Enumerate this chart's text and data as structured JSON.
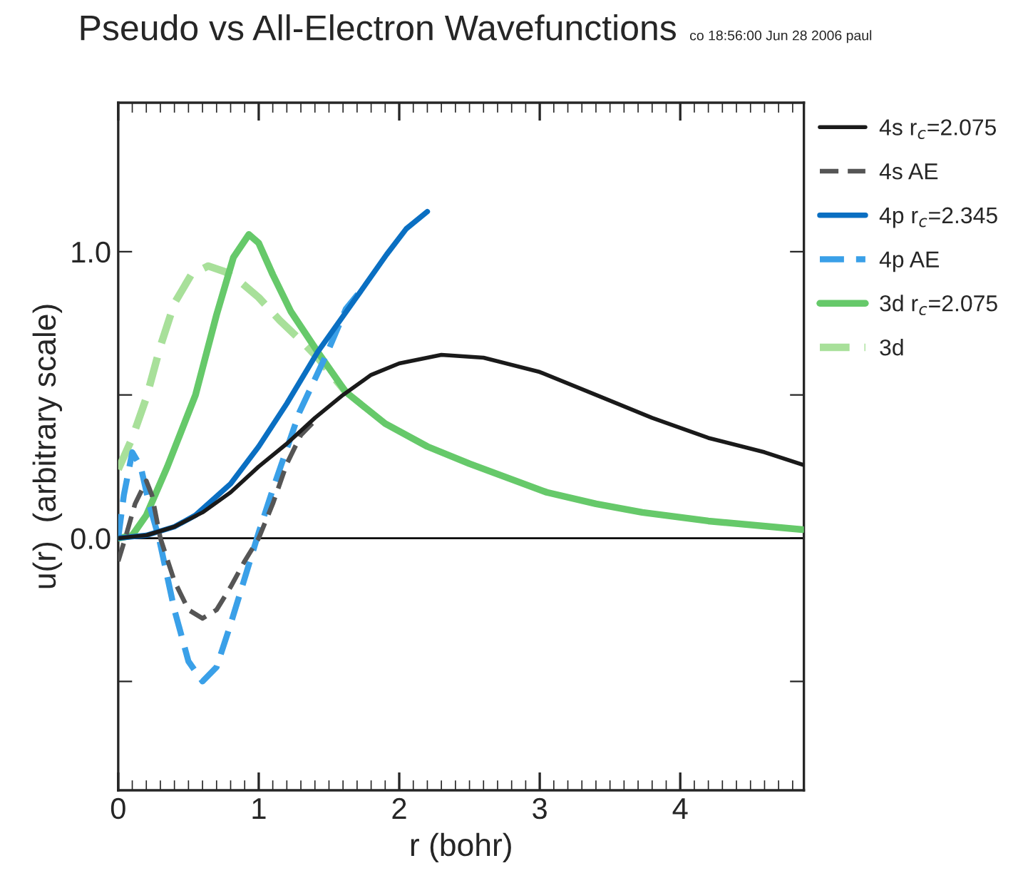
{
  "chart_data": {
    "type": "line",
    "title": "Pseudo vs All-Electron Wavefunctions",
    "subtitle": "co 18:56:00 Jun 28 2006 paul",
    "xlabel": "r (bohr)",
    "ylabel": "u(r)  (arbitrary scale)",
    "xlim": [
      0,
      4.88
    ],
    "xticks": [
      0,
      1,
      2,
      3,
      4
    ],
    "ylim": [
      -0.88,
      1.52
    ],
    "yticks": [
      {
        "value": -0.5,
        "label": null
      },
      {
        "value": 0,
        "label": "0.0"
      },
      {
        "value": 0.5,
        "label": null
      },
      {
        "value": 1,
        "label": "1.0"
      }
    ],
    "grid": false,
    "legend": "right",
    "marker": "none",
    "ref_lines": [
      {
        "axis": "y",
        "value": 0,
        "color": "#000000",
        "line_style": "solid"
      }
    ],
    "series": [
      {
        "name": "4s r$_{c}$=2.075",
        "color": "#1a1a1a",
        "line_style": "solid",
        "x": [
          0,
          0.2,
          0.4,
          0.6,
          0.8,
          1.0,
          1.2,
          1.4,
          1.6,
          1.8,
          2.0,
          2.3,
          2.6,
          3.0,
          3.4,
          3.8,
          4.2,
          4.6,
          4.88
        ],
        "values": [
          0,
          0.01,
          0.04,
          0.09,
          0.16,
          0.25,
          0.33,
          0.42,
          0.5,
          0.57,
          0.61,
          0.64,
          0.63,
          0.58,
          0.5,
          0.42,
          0.35,
          0.3,
          0.255
        ]
      },
      {
        "name": "4s AE",
        "color": "#555555",
        "line_style": "dashed",
        "x": [
          0,
          0.05,
          0.12,
          0.2,
          0.24,
          0.3,
          0.4,
          0.5,
          0.6,
          0.7,
          0.8,
          0.9,
          1.0,
          1.1,
          1.2,
          1.3,
          1.42
        ],
        "values": [
          -0.08,
          0.0,
          0.12,
          0.2,
          0.15,
          0.0,
          -0.15,
          -0.25,
          -0.28,
          -0.25,
          -0.17,
          -0.08,
          0.0,
          0.12,
          0.26,
          0.36,
          0.42
        ]
      },
      {
        "name": "4p r$_{c}$=2.345",
        "color": "#0a6fc2",
        "line_style": "solid",
        "x": [
          0,
          0.2,
          0.4,
          0.55,
          0.8,
          1.0,
          1.2,
          1.42,
          1.68,
          1.91,
          2.05,
          2.2
        ],
        "values": [
          0,
          0.01,
          0.04,
          0.08,
          0.19,
          0.32,
          0.47,
          0.65,
          0.83,
          0.99,
          1.08,
          1.14
        ]
      },
      {
        "name": "4p AE",
        "color": "#3aa0e8",
        "line_style": "dashed",
        "x": [
          0,
          0.04,
          0.1,
          0.16,
          0.22,
          0.29,
          0.4,
          0.5,
          0.6,
          0.7,
          0.8,
          0.9,
          1.0,
          1.1,
          1.29,
          1.49,
          1.62,
          1.72
        ],
        "values": [
          0,
          0.15,
          0.3,
          0.25,
          0.12,
          0.0,
          -0.25,
          -0.43,
          -0.5,
          -0.45,
          -0.3,
          -0.14,
          0.02,
          0.17,
          0.44,
          0.65,
          0.8,
          0.86
        ]
      },
      {
        "name": "3d r$_{c}$=2.075",
        "color": "#66c96a",
        "line_style": "solid",
        "x": [
          0,
          0.1,
          0.2,
          0.35,
          0.55,
          0.7,
          0.82,
          0.93,
          1.0,
          1.1,
          1.23,
          1.42,
          1.62,
          1.9,
          2.2,
          2.5,
          3.05,
          3.4,
          3.73,
          4.2,
          4.87
        ],
        "values": [
          0,
          0.01,
          0.08,
          0.25,
          0.5,
          0.78,
          0.98,
          1.06,
          1.03,
          0.92,
          0.79,
          0.65,
          0.51,
          0.4,
          0.32,
          0.26,
          0.16,
          0.12,
          0.09,
          0.06,
          0.03
        ]
      },
      {
        "name": "3d",
        "color": "#a8e09a",
        "line_style": "dashed",
        "x": [
          0,
          0.1,
          0.2,
          0.3,
          0.4,
          0.52,
          0.64,
          0.76,
          0.88,
          1.0,
          1.15,
          1.3,
          1.42,
          1.62
        ],
        "values": [
          0.24,
          0.35,
          0.49,
          0.67,
          0.82,
          0.92,
          0.95,
          0.93,
          0.89,
          0.84,
          0.76,
          0.69,
          0.63,
          0.51
        ]
      }
    ]
  }
}
